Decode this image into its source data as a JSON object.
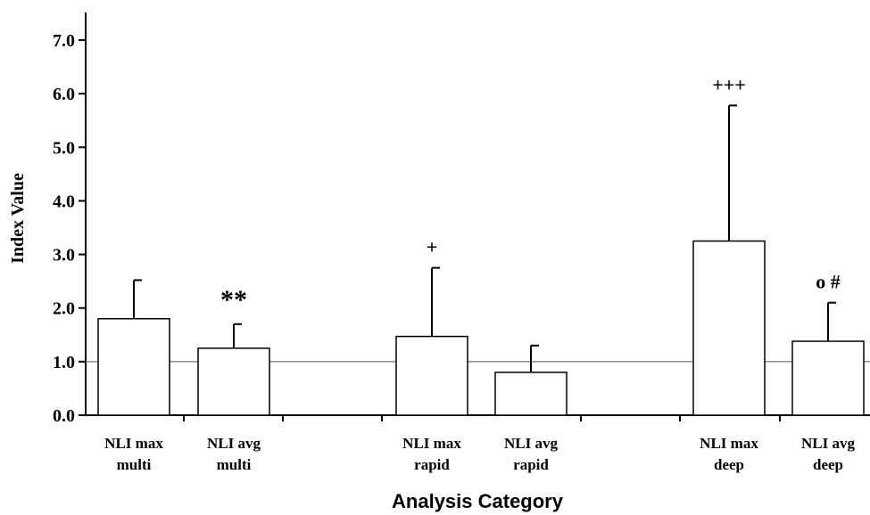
{
  "chart_data": {
    "type": "bar",
    "title": "",
    "xlabel": "Analysis Category",
    "ylabel": "Index Value",
    "ylim": [
      0,
      7
    ],
    "yticks": [
      "0.0",
      "1.0",
      "2.0",
      "3.0",
      "4.0",
      "5.0",
      "6.0",
      "7.0"
    ],
    "reference_line": 1.0,
    "grid": false,
    "legend": "none",
    "bars": [
      {
        "label_line1": "NLI max",
        "label_line2": "multi",
        "value": 1.8,
        "error": 0.72,
        "annotation": ""
      },
      {
        "label_line1": "NLI avg",
        "label_line2": "multi",
        "value": 1.25,
        "error": 0.45,
        "annotation": "**"
      },
      {
        "label_line1": "NLI max",
        "label_line2": "rapid",
        "value": 1.47,
        "error": 1.28,
        "annotation": "+"
      },
      {
        "label_line1": "NLI avg",
        "label_line2": "rapid",
        "value": 0.8,
        "error": 0.5,
        "annotation": ""
      },
      {
        "label_line1": "NLI max",
        "label_line2": "deep",
        "value": 3.25,
        "error": 2.53,
        "annotation": "+++"
      },
      {
        "label_line1": "NLI avg",
        "label_line2": "deep",
        "value": 1.38,
        "error": 0.72,
        "annotation": "o #"
      }
    ],
    "colors": {
      "bar_fill": "#ffffff",
      "stroke": "#000000",
      "reference_line": "#555555"
    }
  }
}
